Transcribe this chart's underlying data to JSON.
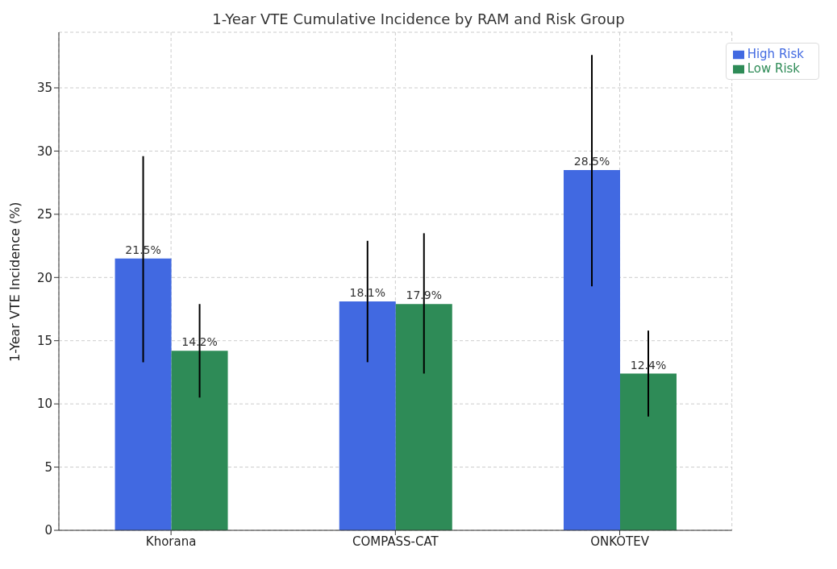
{
  "chart_data": {
    "type": "bar",
    "title": "1-Year VTE Cumulative Incidence by RAM and Risk Group",
    "ylabel": "1-Year VTE Incidence (%)",
    "categories": [
      "Khorana",
      "COMPASS-CAT",
      "ONKOTEV"
    ],
    "series": [
      {
        "name": "High Risk",
        "color": "#4169e1",
        "values": [
          21.5,
          18.1,
          28.5
        ],
        "errors": [
          [
            13.3,
            29.6
          ],
          [
            13.3,
            22.9
          ],
          [
            19.3,
            37.6
          ]
        ],
        "value_labels": [
          "21.5%",
          "18.1%",
          "28.5%"
        ]
      },
      {
        "name": "Low Risk",
        "color": "#2e8b57",
        "values": [
          14.2,
          17.9,
          12.4
        ],
        "errors": [
          [
            10.5,
            17.9
          ],
          [
            12.4,
            23.5
          ],
          [
            9.0,
            15.8
          ]
        ],
        "value_labels": [
          "14.2%",
          "17.9%",
          "12.4%"
        ]
      }
    ],
    "ylim": [
      0,
      39.4
    ],
    "yticks": [
      0,
      5,
      10,
      15,
      20,
      25,
      30,
      35
    ],
    "grid": true,
    "legend": "top right"
  }
}
